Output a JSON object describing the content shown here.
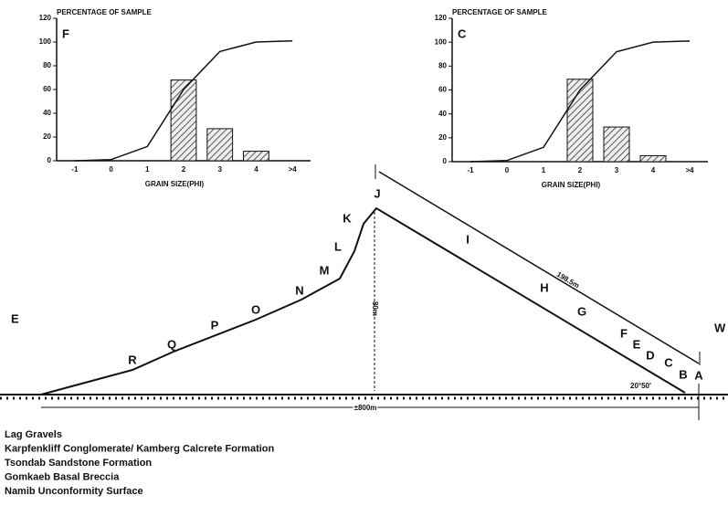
{
  "chart_data": [
    {
      "type": "bar",
      "panel": "F",
      "title": "PERCENTAGE OF SAMPLE",
      "x_label": "GRAIN SIZE(PHI)",
      "categories": [
        "-1",
        "0",
        "1",
        "2",
        "3",
        "4",
        ">4"
      ],
      "values": [
        null,
        null,
        null,
        68,
        27,
        8,
        null
      ],
      "line_values": [
        0,
        1,
        12,
        60,
        92,
        100,
        101
      ],
      "ylim": [
        0,
        120
      ],
      "yticks": [
        0,
        20,
        40,
        60,
        80,
        100,
        120
      ]
    },
    {
      "type": "bar",
      "panel": "C",
      "title": "PERCENTAGE OF SAMPLE",
      "x_label": "GRAIN SIZE(PHI)",
      "categories": [
        "-1",
        "0",
        "1",
        "2",
        "3",
        "4",
        ">4"
      ],
      "values": [
        null,
        null,
        null,
        69,
        29,
        5,
        null
      ],
      "line_values": [
        0,
        1,
        12,
        60,
        92,
        100,
        101
      ],
      "ylim": [
        0,
        120
      ],
      "yticks": [
        0,
        20,
        40,
        60,
        80,
        100,
        120
      ]
    }
  ],
  "profile": {
    "side_left": "E",
    "side_right": "W",
    "points": [
      "R",
      "Q",
      "P",
      "O",
      "N",
      "M",
      "L",
      "K",
      "J",
      "I",
      "H",
      "G",
      "F",
      "E",
      "D",
      "C",
      "B",
      "A"
    ],
    "height": "80m",
    "slope_length": "198.5m",
    "angle": "20°50'",
    "width": "±800m"
  },
  "legend": [
    "Lag Gravels",
    "Karpfenkliff Conglomerate/ Kamberg Calcrete Formation",
    "Tsondab Sandstone Formation",
    "Gomkaeb Basal Breccia",
    "Namib Unconformity Surface"
  ]
}
